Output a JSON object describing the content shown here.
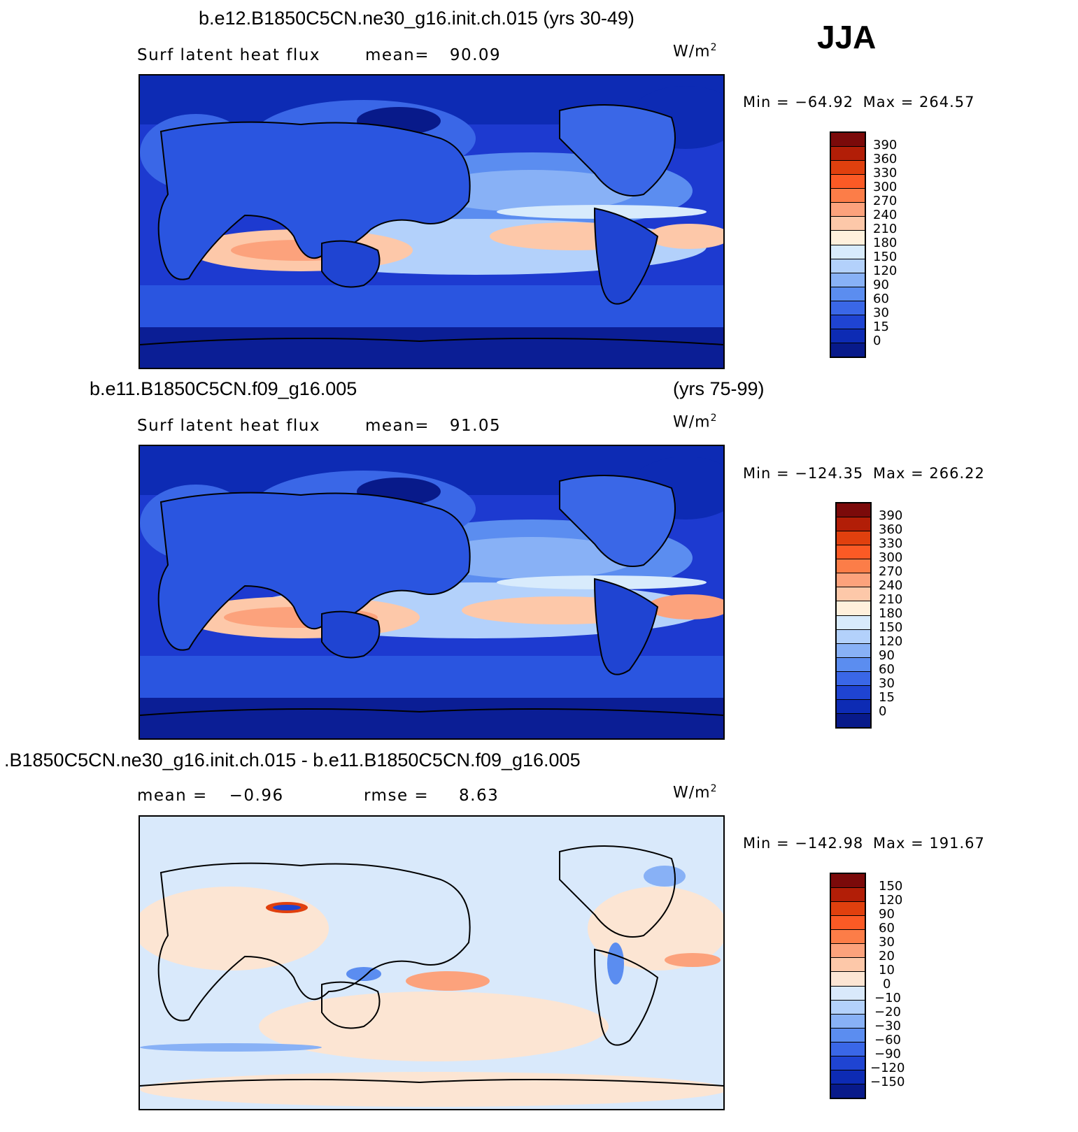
{
  "season": "JJA",
  "panels": [
    {
      "title": "b.e12.B1850C5CN.ne30_g16.init.ch.015 (yrs 30-49)",
      "title_right": "",
      "left_label": "Surf latent heat flux",
      "mid_label": "mean=",
      "mid_value": "90.09",
      "units": "W/m",
      "units_exp": "2",
      "min_label": "Min",
      "min_value": "−64.92",
      "max_label": "Max",
      "max_value": "264.57",
      "colorbar_ticks": [
        "390",
        "360",
        "330",
        "300",
        "270",
        "240",
        "210",
        "180",
        "150",
        "120",
        "90",
        "60",
        "30",
        "15",
        "0"
      ]
    },
    {
      "title": "b.e11.B1850C5CN.f09_g16.005",
      "title_right": "(yrs 75-99)",
      "left_label": "Surf latent heat flux",
      "mid_label": "mean=",
      "mid_value": "91.05",
      "units": "W/m",
      "units_exp": "2",
      "min_label": "Min",
      "min_value": "−124.35",
      "max_label": "Max",
      "max_value": "266.22",
      "colorbar_ticks": [
        "390",
        "360",
        "330",
        "300",
        "270",
        "240",
        "210",
        "180",
        "150",
        "120",
        "90",
        "60",
        "30",
        "15",
        "0"
      ]
    },
    {
      "title": ".B1850C5CN.ne30_g16.init.ch.015 - b.e11.B1850C5CN.f09_g16.005",
      "title_right": "",
      "left_label": "mean =",
      "left_value": "−0.96",
      "mid_label": "rmse =",
      "mid_value": "8.63",
      "units": "W/m",
      "units_exp": "2",
      "min_label": "Min",
      "min_value": "−142.98",
      "max_label": "Max",
      "max_value": "191.67",
      "colorbar_ticks": [
        "150",
        "120",
        "90",
        "60",
        "30",
        "20",
        "10",
        "0",
        "−10",
        "−20",
        "−30",
        "−60",
        "−90",
        "−120",
        "−150"
      ]
    }
  ],
  "colors": {
    "abs_scale": [
      "#7b0a0a",
      "#b21e07",
      "#e0400e",
      "#fb5a25",
      "#fc7d48",
      "#fca27c",
      "#fdc8a9",
      "#fff0dc",
      "#d8ebfc",
      "#b3d1fb",
      "#88b1f6",
      "#5b8df0",
      "#3a67e7",
      "#1f44d2",
      "#0d2bb4",
      "#081a8a"
    ],
    "diff_scale": [
      "#7b0a0a",
      "#b21e07",
      "#e0400e",
      "#fb5a25",
      "#fc7d48",
      "#fca27c",
      "#fdc8a9",
      "#fce5d3",
      "#d9e9fb",
      "#b3d1fb",
      "#88b1f6",
      "#5b8df0",
      "#3a67e7",
      "#1f44d2",
      "#0d2bb4",
      "#081a8a"
    ]
  }
}
